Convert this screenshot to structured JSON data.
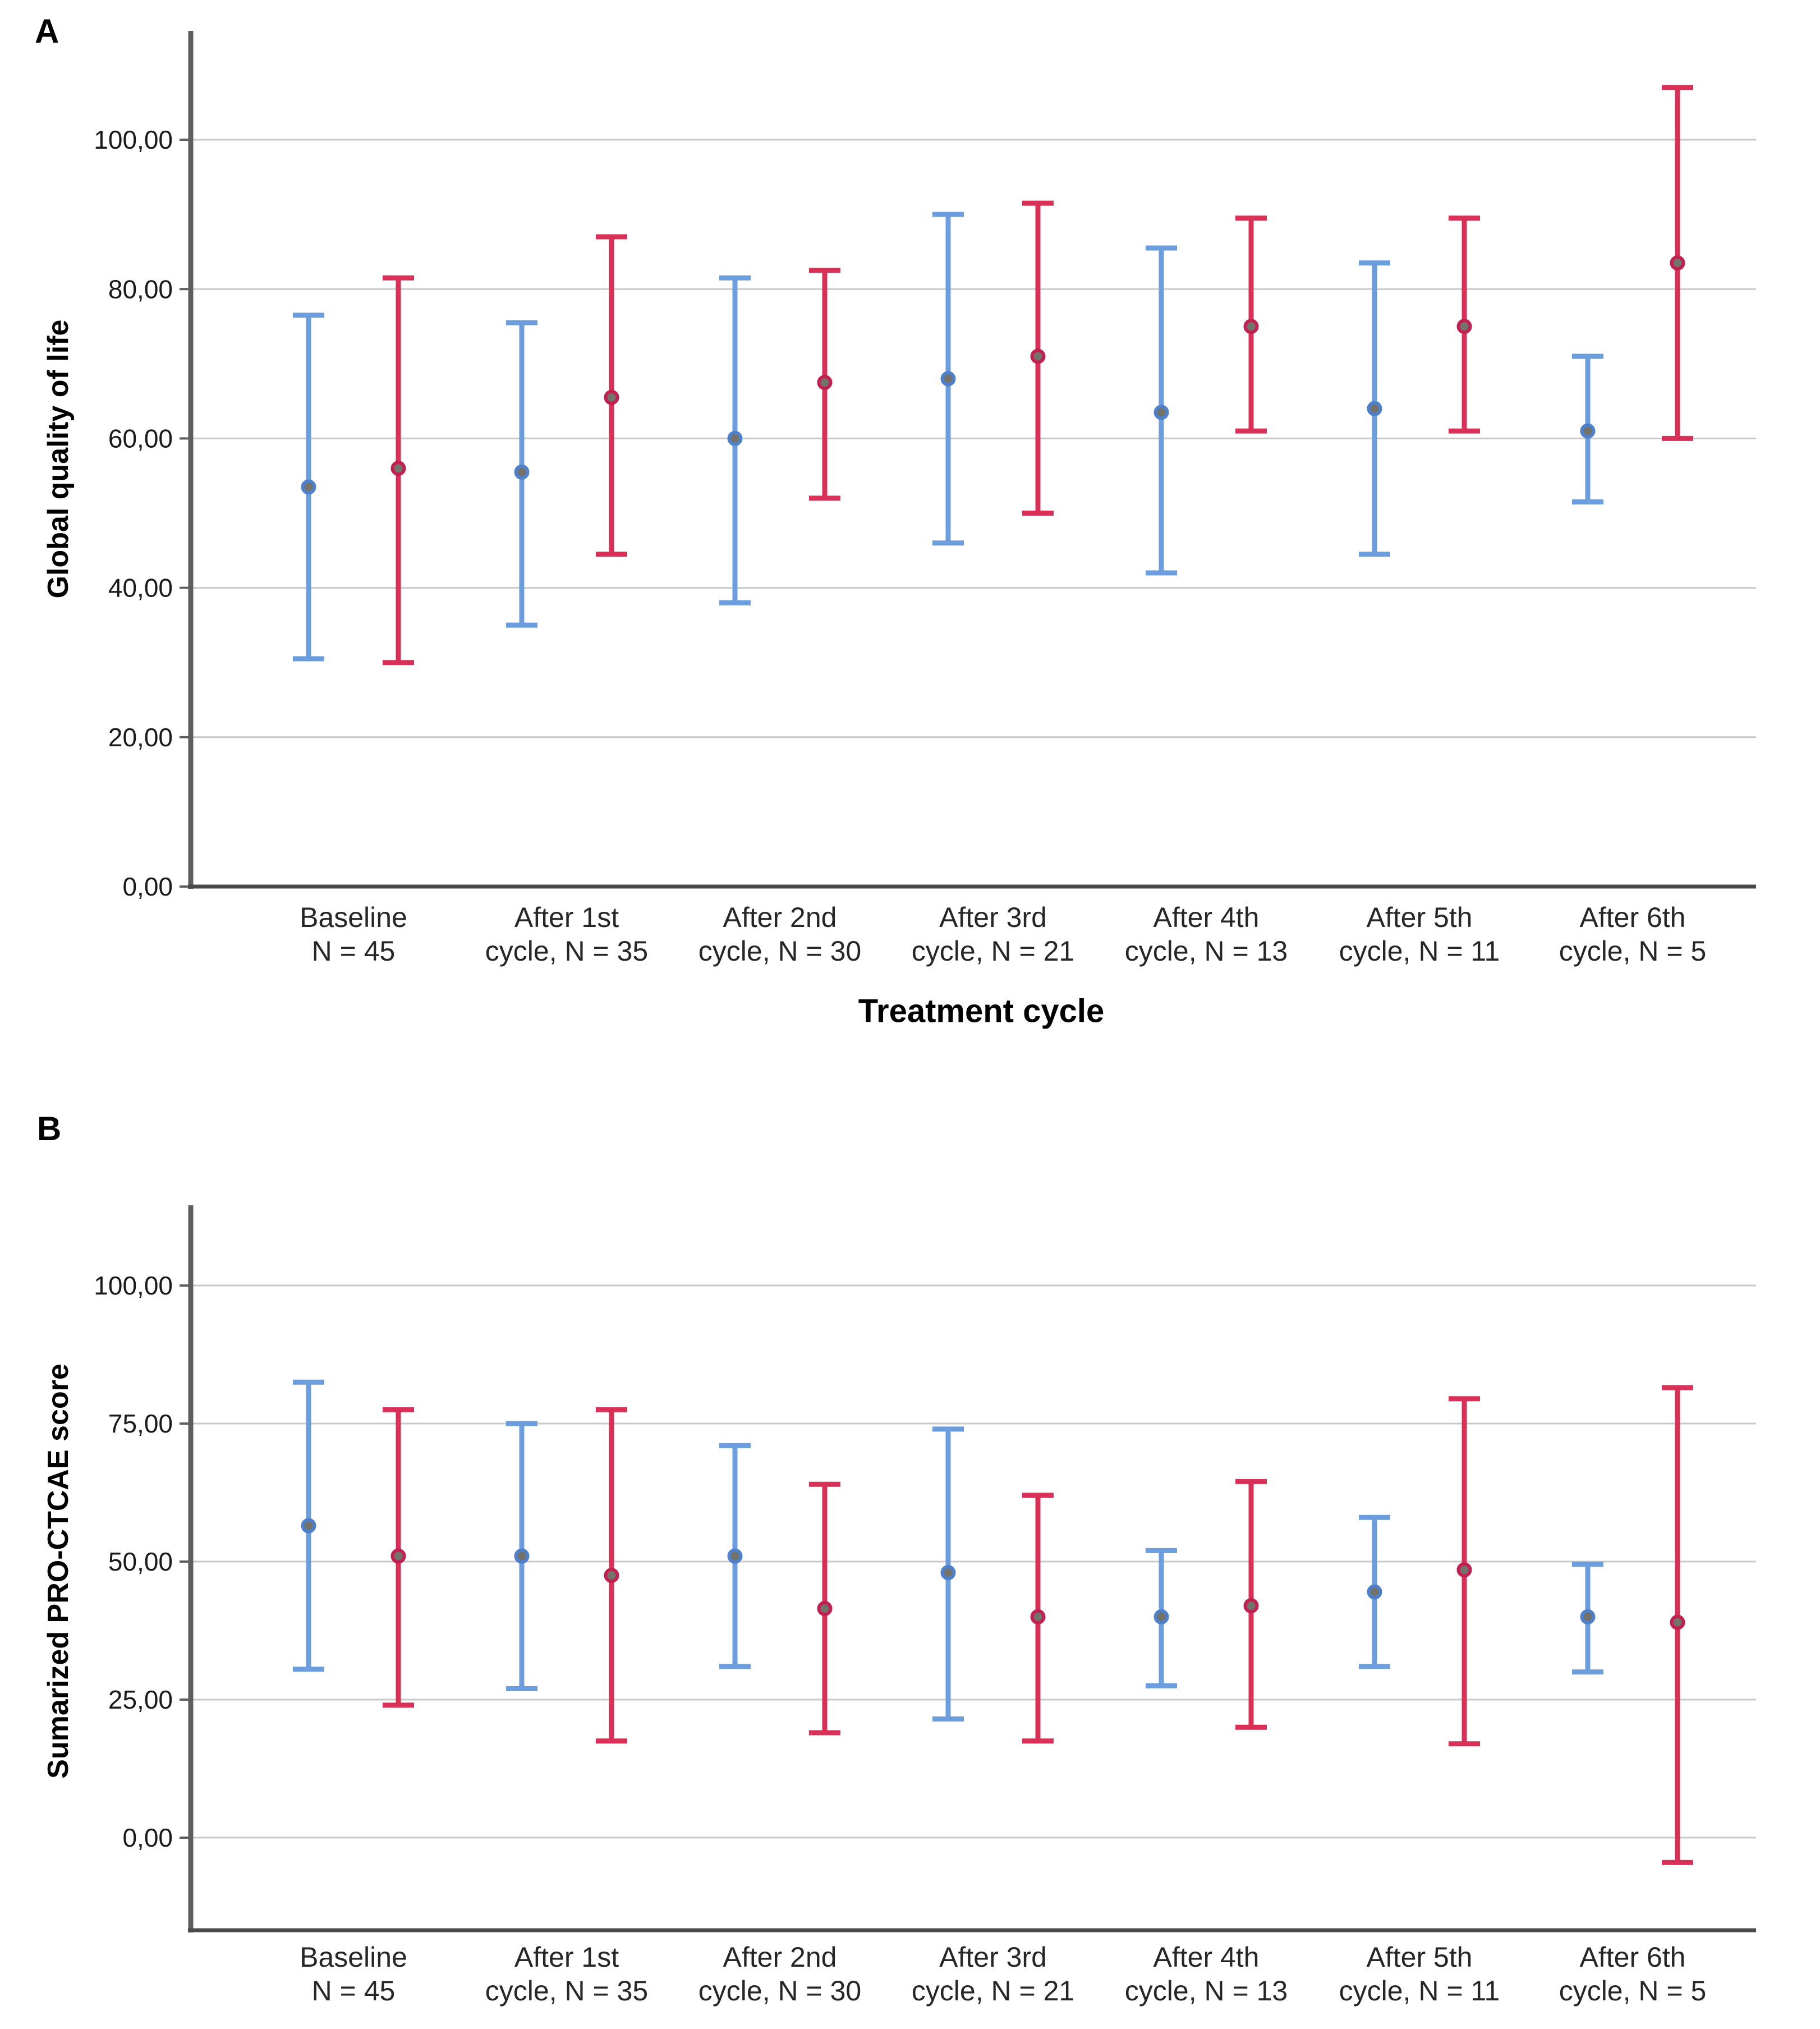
{
  "figure": {
    "background": "#ffffff",
    "gridline_color": "#C9C9C9",
    "axis_color": "#5E5E5E",
    "tick_text_color": "#1A1A1A",
    "marker_inner_color": "#73736C"
  },
  "chart_data": [
    {
      "type": "errorbar",
      "panel": "A",
      "ylabel": "Global quality of life",
      "xlabel": "Treatment cycle",
      "ylim": [
        0,
        110
      ],
      "grid": true,
      "legend": "none",
      "yticks": [
        {
          "v": 0,
          "label": "0,00"
        },
        {
          "v": 20,
          "label": "20,00"
        },
        {
          "v": 40,
          "label": "40,00"
        },
        {
          "v": 60,
          "label": "60,00"
        },
        {
          "v": 80,
          "label": "80,00"
        },
        {
          "v": 100,
          "label": "100,00"
        }
      ],
      "gridlines": [
        20,
        40,
        60,
        80,
        100
      ],
      "categories": [
        {
          "line1": "Baseline",
          "line2": "N = 45"
        },
        {
          "line1": "After 1st",
          "line2": "cycle, N = 35"
        },
        {
          "line1": "After 2nd",
          "line2": "cycle, N = 30"
        },
        {
          "line1": "After 3rd",
          "line2": "cycle, N = 21"
        },
        {
          "line1": "After 4th",
          "line2": "cycle, N = 13"
        },
        {
          "line1": "After 5th",
          "line2": "cycle, N = 11"
        },
        {
          "line1": "After 6th",
          "line2": "cycle, N = 5"
        }
      ],
      "series": [
        {
          "name": "blue-series",
          "color": "#6C9DDC",
          "marker_color": "#4E80CB",
          "means": [
            53.5,
            55.5,
            60.0,
            68.0,
            63.5,
            64.0,
            61.0
          ],
          "lower": [
            30.5,
            35.0,
            38.0,
            46.0,
            42.0,
            44.5,
            51.5
          ],
          "upper": [
            76.5,
            75.5,
            81.5,
            90.0,
            85.5,
            83.5,
            71.0
          ]
        },
        {
          "name": "red-series",
          "color": "#D83056",
          "marker_color": "#C22050",
          "means": [
            56.0,
            65.5,
            67.5,
            71.0,
            75.0,
            75.0,
            83.5
          ],
          "lower": [
            30.0,
            44.5,
            52.0,
            50.0,
            61.0,
            61.0,
            60.0
          ],
          "upper": [
            81.5,
            87.0,
            82.5,
            91.5,
            89.5,
            89.5,
            107.0
          ]
        }
      ]
    },
    {
      "type": "errorbar",
      "panel": "B",
      "ylabel": "Sumarized PRO-CTCAE score",
      "xlabel": "",
      "ylim": [
        -17,
        113
      ],
      "grid": true,
      "legend": "none",
      "yticks": [
        {
          "v": 0,
          "label": "0,00"
        },
        {
          "v": 25,
          "label": "25,00"
        },
        {
          "v": 50,
          "label": "50,00"
        },
        {
          "v": 75,
          "label": "75,00"
        },
        {
          "v": 100,
          "label": "100,00"
        }
      ],
      "gridlines": [
        0,
        25,
        50,
        75,
        100
      ],
      "categories": [
        {
          "line1": "Baseline",
          "line2": "N = 45"
        },
        {
          "line1": "After 1st",
          "line2": "cycle, N = 35"
        },
        {
          "line1": "After 2nd",
          "line2": "cycle, N = 30"
        },
        {
          "line1": "After 3rd",
          "line2": "cycle, N = 21"
        },
        {
          "line1": "After 4th",
          "line2": "cycle, N = 13"
        },
        {
          "line1": "After 5th",
          "line2": "cycle, N = 11"
        },
        {
          "line1": "After 6th",
          "line2": "cycle, N = 5"
        }
      ],
      "series": [
        {
          "name": "blue-series",
          "color": "#6C9DDC",
          "marker_color": "#4E80CB",
          "means": [
            56.5,
            51.0,
            51.0,
            48.0,
            40.0,
            44.5,
            40.0
          ],
          "lower": [
            30.5,
            27.0,
            31.0,
            21.5,
            27.5,
            31.0,
            30.0
          ],
          "upper": [
            82.5,
            75.0,
            71.0,
            74.0,
            52.0,
            58.0,
            49.5
          ]
        },
        {
          "name": "red-series",
          "color": "#D83056",
          "marker_color": "#C22050",
          "means": [
            51.0,
            47.5,
            41.5,
            40.0,
            42.0,
            48.5,
            39.0
          ],
          "lower": [
            24.0,
            17.5,
            19.0,
            17.5,
            20.0,
            17.0,
            -4.5
          ],
          "upper": [
            77.5,
            77.5,
            64.0,
            62.0,
            64.5,
            79.5,
            81.5
          ]
        }
      ]
    }
  ]
}
